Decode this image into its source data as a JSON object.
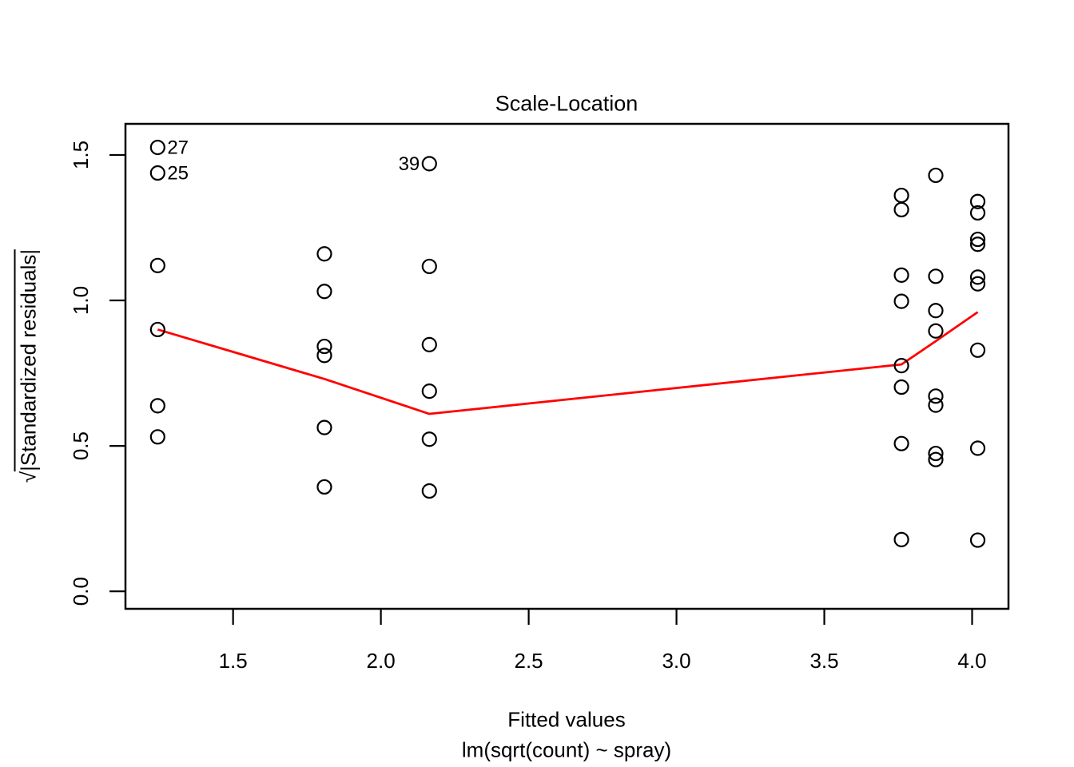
{
  "figure": {
    "title": "Scale-Location",
    "x_axis_label": "Fitted values",
    "model_label": "lm(sqrt(count) ~ spray)",
    "y_axis_radical": "√",
    "y_axis_body": "|Standardized residuals|"
  },
  "chart_data": {
    "type": "scatter",
    "title": "Scale-Location",
    "xlabel": "Fitted values",
    "xlabel_sub": "lm(sqrt(count) ~ spray)",
    "ylabel": "√|Standardized residuals|",
    "grid": false,
    "legend": "none",
    "point_color": "#000000",
    "smoother_color": "#FF0000",
    "xlim": [
      1.136,
      4.123
    ],
    "ylim": [
      -0.06,
      1.607
    ],
    "x_ticks": [
      "1.5",
      "2.0",
      "2.5",
      "3.0",
      "3.5",
      "4.0"
    ],
    "x_tick_values": [
      1.5,
      2.0,
      2.5,
      3.0,
      3.5,
      4.0
    ],
    "y_ticks": [
      "0.0",
      "0.5",
      "1.0",
      "1.5"
    ],
    "y_tick_values": [
      0.0,
      0.5,
      1.0,
      1.5
    ],
    "groups": [
      {
        "fitted": 1.245,
        "sqrt_abs_std_resid": [
          1.526,
          1.438,
          1.12,
          0.9,
          0.638,
          0.531
        ]
      },
      {
        "fitted": 1.809,
        "sqrt_abs_std_resid": [
          1.16,
          1.031,
          0.842,
          0.811,
          0.563,
          0.359
        ]
      },
      {
        "fitted": 2.164,
        "sqrt_abs_std_resid": [
          1.47,
          1.117,
          0.848,
          0.688,
          0.523,
          0.345
        ]
      },
      {
        "fitted": 3.761,
        "sqrt_abs_std_resid": [
          1.361,
          1.312,
          1.087,
          0.997,
          0.776,
          0.702,
          0.508,
          0.178
        ]
      },
      {
        "fitted": 3.877,
        "sqrt_abs_std_resid": [
          1.43,
          1.083,
          0.965,
          0.895,
          0.671,
          0.64,
          0.474,
          0.453
        ]
      },
      {
        "fitted": 4.019,
        "sqrt_abs_std_resid": [
          1.34,
          1.301,
          1.21,
          1.193,
          1.08,
          1.057,
          0.829,
          0.492,
          0.176
        ]
      }
    ],
    "smoother": [
      [
        1.245,
        0.9
      ],
      [
        1.809,
        0.73
      ],
      [
        2.164,
        0.61
      ],
      [
        3.761,
        0.78
      ],
      [
        3.877,
        0.86
      ],
      [
        4.019,
        0.96
      ]
    ],
    "labeled_points": [
      {
        "label": "27",
        "x": 1.245,
        "y": 1.526,
        "side": "right"
      },
      {
        "label": "25",
        "x": 1.245,
        "y": 1.438,
        "side": "right"
      },
      {
        "label": "39",
        "x": 2.164,
        "y": 1.47,
        "side": "left"
      }
    ]
  }
}
